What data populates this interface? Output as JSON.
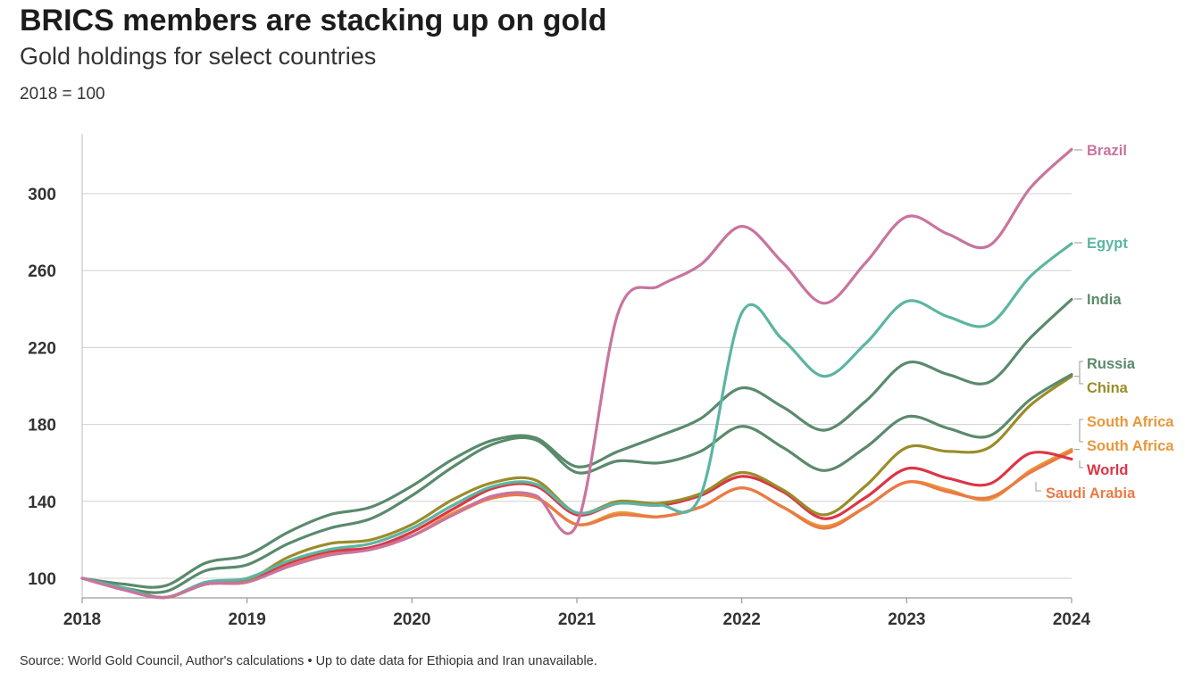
{
  "header": {
    "title": "BRICS members are stacking up on gold",
    "subtitle": "Gold holdings for select countries",
    "unit": "2018 = 100"
  },
  "footer": {
    "source": "Source: World Gold Council, Author's calculations • Up to date data for Ethiopia and Iran unavailable."
  },
  "chart_data": {
    "type": "line",
    "title": "BRICS members are stacking up on gold",
    "subtitle": "Gold holdings for select countries",
    "ylabel": "2018 = 100",
    "x_ticks": [
      "2018",
      "2019",
      "2020",
      "2021",
      "2022",
      "2023",
      "2024"
    ],
    "y_ticks": [
      100,
      140,
      180,
      220,
      260,
      300
    ],
    "xlim": [
      2018,
      2024
    ],
    "ylim": [
      90,
      330
    ],
    "grid": "horizontal",
    "x": [
      2018,
      2018.25,
      2018.5,
      2018.75,
      2019,
      2019.25,
      2019.5,
      2019.75,
      2020,
      2020.25,
      2020.5,
      2020.75,
      2021,
      2021.25,
      2021.5,
      2021.75,
      2022,
      2022.25,
      2022.5,
      2022.75,
      2023,
      2023.25,
      2023.5,
      2023.75,
      2024
    ],
    "series": [
      {
        "name": "Brazil",
        "color": "#c9749f",
        "values": [
          100,
          94,
          90,
          97,
          98,
          106,
          112,
          115,
          122,
          133,
          143,
          143,
          128,
          238,
          252,
          263,
          283,
          264,
          243,
          264,
          288,
          279,
          273,
          303,
          323
        ]
      },
      {
        "name": "Egypt",
        "color": "#5bb5a2",
        "values": [
          100,
          95,
          90,
          98,
          100,
          109,
          115,
          118,
          126,
          138,
          148,
          149,
          134,
          139,
          138,
          143,
          238,
          224,
          205,
          222,
          244,
          236,
          232,
          257,
          274
        ]
      },
      {
        "name": "India",
        "color": "#5a8a6c",
        "values": [
          100,
          97,
          96,
          108,
          112,
          124,
          133,
          137,
          148,
          162,
          172,
          173,
          158,
          166,
          174,
          183,
          199,
          189,
          177,
          192,
          212,
          206,
          202,
          225,
          245
        ]
      },
      {
        "name": "Russia",
        "color": "#5a8a6c",
        "values": [
          100,
          95,
          93,
          104,
          107,
          118,
          126,
          131,
          143,
          158,
          170,
          172,
          155,
          161,
          160,
          166,
          179,
          168,
          156,
          168,
          184,
          178,
          174,
          193,
          206
        ]
      },
      {
        "name": "China",
        "color": "#9a8c2a",
        "values": [
          100,
          95,
          90,
          97,
          99,
          111,
          118,
          120,
          128,
          141,
          150,
          151,
          134,
          140,
          139,
          144,
          155,
          146,
          133,
          148,
          168,
          166,
          168,
          190,
          205
        ]
      },
      {
        "name": "South Africa",
        "color": "#e8973a",
        "values": [
          100,
          95,
          90,
          97,
          99,
          108,
          113,
          116,
          122,
          134,
          142,
          142,
          128,
          134,
          132,
          137,
          147,
          137,
          127,
          137,
          150,
          146,
          141,
          156,
          167
        ]
      },
      {
        "name": "South Africa",
        "color": "#e8973a",
        "values": [
          100,
          95,
          90,
          97,
          98,
          107,
          113,
          115,
          122,
          133,
          142,
          142,
          128,
          133,
          132,
          137,
          147,
          137,
          126,
          137,
          150,
          145,
          142,
          155,
          166
        ]
      },
      {
        "name": "World",
        "color": "#dc3545",
        "values": [
          100,
          95,
          90,
          97,
          99,
          108,
          114,
          116,
          124,
          136,
          147,
          148,
          133,
          139,
          138,
          143,
          153,
          145,
          131,
          142,
          157,
          152,
          149,
          165,
          162
        ]
      },
      {
        "name": "Saudi Arabia",
        "color": "#ea7a46",
        "values": [
          100,
          95,
          90,
          97,
          98,
          107,
          113,
          115,
          122,
          133,
          142,
          142,
          128,
          133,
          132,
          137,
          147,
          137,
          126,
          137,
          150,
          145,
          142,
          155,
          166
        ]
      }
    ],
    "end_labels": [
      {
        "text": "Brazil",
        "color": "#c9749f",
        "bracket": "line"
      },
      {
        "text": "Egypt",
        "color": "#5bb5a2",
        "bracket": "line"
      },
      {
        "text": "India",
        "color": "#5a8a6c",
        "bracket": "line"
      },
      {
        "text": "Russia",
        "color": "#5a8a6c",
        "bracket": "pair"
      },
      {
        "text": "China",
        "color": "#9a8c2a",
        "bracket": "pair"
      },
      {
        "text": "South Africa",
        "color": "#e8973a",
        "bracket": "pair"
      },
      {
        "text": "South Africa",
        "color": "#e8973a",
        "bracket": "pair"
      },
      {
        "text": "World",
        "color": "#dc3545",
        "bracket": "single"
      },
      {
        "text": "Saudi Arabia",
        "color": "#ea7a46",
        "bracket": "elbow"
      }
    ]
  }
}
